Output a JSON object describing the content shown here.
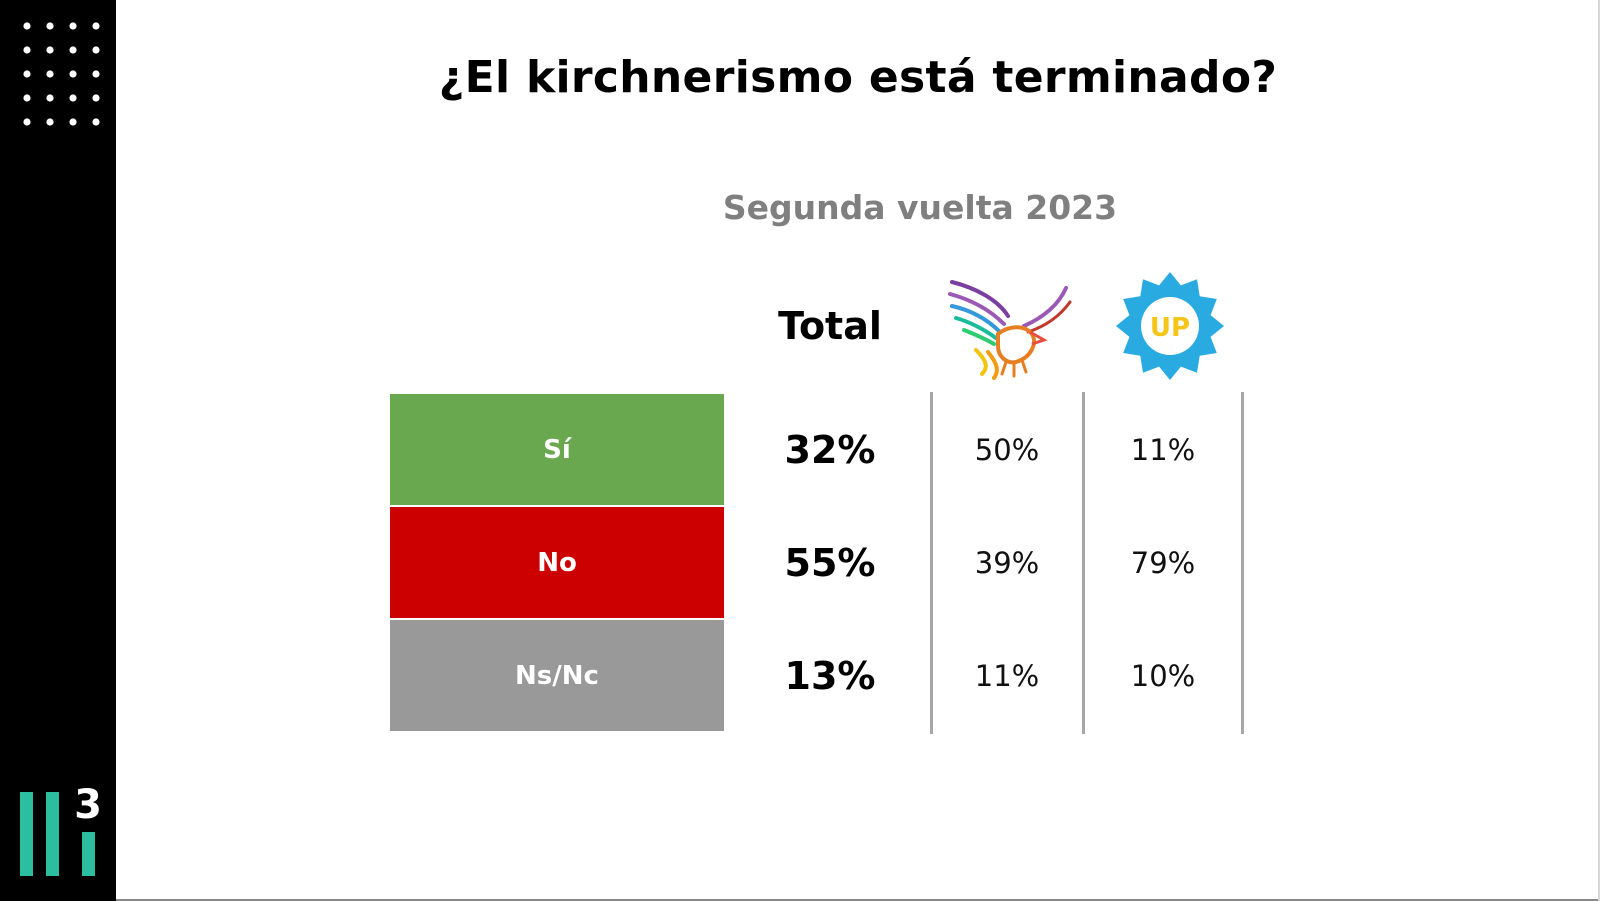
{
  "colors": {
    "sidebar": "#000000",
    "dots": "#ffffff",
    "brand_accent": "#2bbf9f",
    "si": "#6aa84f",
    "no": "#cc0000",
    "nsnc": "#999999",
    "subtitle": "#7f7f7f",
    "divider": "#a6a6a6",
    "up_badge": "#29abe2",
    "up_text": "#f5c518"
  },
  "branding": {
    "logo_digit": "3"
  },
  "chart_data": {
    "type": "table",
    "title": "¿El kirchnerismo está terminado?",
    "subtitle": "Segunda vuelta 2023",
    "columns": [
      {
        "key": "total",
        "label": "Total"
      },
      {
        "key": "lla",
        "label": "",
        "icon": "eagle-logo-icon"
      },
      {
        "key": "up",
        "label": "",
        "icon": "up-badge-icon",
        "badge_text": "UP"
      }
    ],
    "rows": [
      {
        "label": "Sí",
        "color": "#6aa84f",
        "total": "32%",
        "lla": "50%",
        "up": "11%"
      },
      {
        "label": "No",
        "color": "#cc0000",
        "total": "55%",
        "lla": "39%",
        "up": "79%"
      },
      {
        "label": "Ns/Nc",
        "color": "#999999",
        "total": "13%",
        "lla": "11%",
        "up": "10%"
      }
    ]
  }
}
